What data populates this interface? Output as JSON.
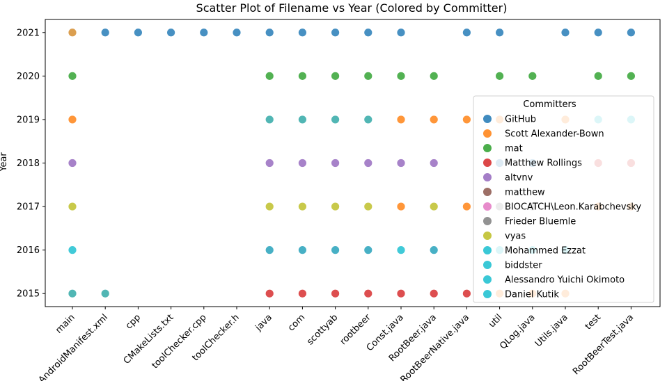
{
  "chart_data": {
    "type": "scatter",
    "title": "Scatter Plot of Filename vs Year (Colored by Committer)",
    "xlabel": "",
    "ylabel": "Year",
    "categories": [
      "main",
      "AndroidManifest.xml",
      "cpp",
      "CMakeLists.txt",
      "toolChecker.cpp",
      "toolChecker.h",
      "java",
      "com",
      "scottyab",
      "rootbeer",
      "Const.java",
      "RootBeer.java",
      "RootBeerNative.java",
      "util",
      "QLog.java",
      "Utils.java",
      "test",
      "RootBeerTest.java"
    ],
    "yticks": [
      2015,
      2016,
      2017,
      2018,
      2019,
      2020,
      2021
    ],
    "ylim": [
      2014.7,
      2021.3
    ],
    "grid": false,
    "legend": {
      "title": "Committers",
      "placement": "center-right",
      "entries": [
        {
          "name": "GitHub",
          "color": "#1f77b4"
        },
        {
          "name": "Scott Alexander-Bown",
          "color": "#ff7f0e"
        },
        {
          "name": "mat",
          "color": "#2ca02c"
        },
        {
          "name": "Matthew Rollings",
          "color": "#d62728"
        },
        {
          "name": "altvnv",
          "color": "#9467bd"
        },
        {
          "name": "matthew",
          "color": "#8c564b"
        },
        {
          "name": "BIOCATCH\\Leon.Karabchevsky",
          "color": "#e377c2"
        },
        {
          "name": "Frieder Bluemle",
          "color": "#7f7f7f"
        },
        {
          "name": "vyas",
          "color": "#bcbd22"
        },
        {
          "name": "Mohammed Ezzat",
          "color": "#17becf"
        },
        {
          "name": "biddster",
          "color": "#17becf"
        },
        {
          "name": "Alessandro Yuichi Okimoto",
          "color": "#17becf"
        },
        {
          "name": "Daniel Kutik",
          "color": "#17becf"
        }
      ]
    },
    "points": [
      {
        "x": "main",
        "y": 2021,
        "color": "#d38a2a"
      },
      {
        "x": "main",
        "y": 2020,
        "color": "#2ca02c"
      },
      {
        "x": "main",
        "y": 2019,
        "color": "#ff7f0e"
      },
      {
        "x": "main",
        "y": 2018,
        "color": "#9467bd"
      },
      {
        "x": "main",
        "y": 2017,
        "color": "#bcbd22"
      },
      {
        "x": "main",
        "y": 2016,
        "color": "#17becf"
      },
      {
        "x": "main",
        "y": 2015,
        "color": "#2ba6a4"
      },
      {
        "x": "AndroidManifest.xml",
        "y": 2021,
        "color": "#1f77b4"
      },
      {
        "x": "AndroidManifest.xml",
        "y": 2015,
        "color": "#2ba6a4"
      },
      {
        "x": "cpp",
        "y": 2021,
        "color": "#1f77b4"
      },
      {
        "x": "CMakeLists.txt",
        "y": 2021,
        "color": "#1f77b4"
      },
      {
        "x": "toolChecker.cpp",
        "y": 2021,
        "color": "#1f77b4"
      },
      {
        "x": "toolChecker.h",
        "y": 2021,
        "color": "#1f77b4"
      },
      {
        "x": "java",
        "y": 2021,
        "color": "#1f77b4"
      },
      {
        "x": "java",
        "y": 2020,
        "color": "#2ca02c"
      },
      {
        "x": "java",
        "y": 2019,
        "color": "#2ba6a4"
      },
      {
        "x": "java",
        "y": 2018,
        "color": "#9467bd"
      },
      {
        "x": "java",
        "y": 2017,
        "color": "#bcbd22"
      },
      {
        "x": "java",
        "y": 2016,
        "color": "#1f9fb8"
      },
      {
        "x": "java",
        "y": 2015,
        "color": "#d62728"
      },
      {
        "x": "com",
        "y": 2021,
        "color": "#1f77b4"
      },
      {
        "x": "com",
        "y": 2020,
        "color": "#2ca02c"
      },
      {
        "x": "com",
        "y": 2019,
        "color": "#2ba6a4"
      },
      {
        "x": "com",
        "y": 2018,
        "color": "#9467bd"
      },
      {
        "x": "com",
        "y": 2017,
        "color": "#bcbd22"
      },
      {
        "x": "com",
        "y": 2016,
        "color": "#1f9fb8"
      },
      {
        "x": "com",
        "y": 2015,
        "color": "#d62728"
      },
      {
        "x": "scottyab",
        "y": 2021,
        "color": "#1f77b4"
      },
      {
        "x": "scottyab",
        "y": 2020,
        "color": "#2ca02c"
      },
      {
        "x": "scottyab",
        "y": 2019,
        "color": "#2ba6a4"
      },
      {
        "x": "scottyab",
        "y": 2018,
        "color": "#9467bd"
      },
      {
        "x": "scottyab",
        "y": 2017,
        "color": "#bcbd22"
      },
      {
        "x": "scottyab",
        "y": 2016,
        "color": "#1f9fb8"
      },
      {
        "x": "scottyab",
        "y": 2015,
        "color": "#d62728"
      },
      {
        "x": "rootbeer",
        "y": 2021,
        "color": "#1f77b4"
      },
      {
        "x": "rootbeer",
        "y": 2020,
        "color": "#2ca02c"
      },
      {
        "x": "rootbeer",
        "y": 2019,
        "color": "#2ba6a4"
      },
      {
        "x": "rootbeer",
        "y": 2018,
        "color": "#9467bd"
      },
      {
        "x": "rootbeer",
        "y": 2017,
        "color": "#bcbd22"
      },
      {
        "x": "rootbeer",
        "y": 2016,
        "color": "#1f9fb8"
      },
      {
        "x": "rootbeer",
        "y": 2015,
        "color": "#d62728"
      },
      {
        "x": "Const.java",
        "y": 2021,
        "color": "#1f77b4"
      },
      {
        "x": "Const.java",
        "y": 2020,
        "color": "#2ca02c"
      },
      {
        "x": "Const.java",
        "y": 2019,
        "color": "#ff7f0e"
      },
      {
        "x": "Const.java",
        "y": 2018,
        "color": "#9467bd"
      },
      {
        "x": "Const.java",
        "y": 2017,
        "color": "#ff7f0e"
      },
      {
        "x": "Const.java",
        "y": 2016,
        "color": "#17becf"
      },
      {
        "x": "Const.java",
        "y": 2015,
        "color": "#d62728"
      },
      {
        "x": "RootBeer.java",
        "y": 2020,
        "color": "#2ca02c"
      },
      {
        "x": "RootBeer.java",
        "y": 2019,
        "color": "#ff7f0e"
      },
      {
        "x": "RootBeer.java",
        "y": 2018,
        "color": "#9467bd"
      },
      {
        "x": "RootBeer.java",
        "y": 2017,
        "color": "#bcbd22"
      },
      {
        "x": "RootBeer.java",
        "y": 2016,
        "color": "#1f9fb8"
      },
      {
        "x": "RootBeer.java",
        "y": 2015,
        "color": "#d62728"
      },
      {
        "x": "RootBeerNative.java",
        "y": 2021,
        "color": "#1f77b4"
      },
      {
        "x": "RootBeerNative.java",
        "y": 2019,
        "color": "#ff7f0e"
      },
      {
        "x": "RootBeerNative.java",
        "y": 2017,
        "color": "#ff7f0e"
      },
      {
        "x": "RootBeerNative.java",
        "y": 2015,
        "color": "#d62728"
      },
      {
        "x": "util",
        "y": 2021,
        "color": "#1f77b4"
      },
      {
        "x": "util",
        "y": 2020,
        "color": "#2ca02c"
      },
      {
        "x": "util",
        "y": 2019,
        "color": "#ff7f0e"
      },
      {
        "x": "util",
        "y": 2018,
        "color": "#1f77b4"
      },
      {
        "x": "util",
        "y": 2017,
        "color": "#7f7f7f"
      },
      {
        "x": "util",
        "y": 2016,
        "color": "#17becf"
      },
      {
        "x": "util",
        "y": 2015,
        "color": "#ff7f0e"
      },
      {
        "x": "QLog.java",
        "y": 2020,
        "color": "#2ca02c"
      },
      {
        "x": "QLog.java",
        "y": 2018,
        "color": "#1f77b4"
      },
      {
        "x": "QLog.java",
        "y": 2017,
        "color": "#7f7f7f"
      },
      {
        "x": "QLog.java",
        "y": 2016,
        "color": "#17becf"
      },
      {
        "x": "QLog.java",
        "y": 2015,
        "color": "#ff7f0e"
      },
      {
        "x": "Utils.java",
        "y": 2021,
        "color": "#1f77b4"
      },
      {
        "x": "Utils.java",
        "y": 2019,
        "color": "#ff7f0e"
      },
      {
        "x": "Utils.java",
        "y": 2016,
        "color": "#17becf"
      },
      {
        "x": "Utils.java",
        "y": 2015,
        "color": "#ff7f0e"
      },
      {
        "x": "test",
        "y": 2021,
        "color": "#1f77b4"
      },
      {
        "x": "test",
        "y": 2020,
        "color": "#2ca02c"
      },
      {
        "x": "test",
        "y": 2019,
        "color": "#17becf"
      },
      {
        "x": "test",
        "y": 2018,
        "color": "#d62728"
      },
      {
        "x": "test",
        "y": 2017,
        "color": "#ff7f0e"
      },
      {
        "x": "RootBeerTest.java",
        "y": 2021,
        "color": "#1f77b4"
      },
      {
        "x": "RootBeerTest.java",
        "y": 2020,
        "color": "#2ca02c"
      },
      {
        "x": "RootBeerTest.java",
        "y": 2019,
        "color": "#17becf"
      },
      {
        "x": "RootBeerTest.java",
        "y": 2018,
        "color": "#d62728"
      },
      {
        "x": "RootBeerTest.java",
        "y": 2017,
        "color": "#ff7f0e"
      }
    ]
  }
}
